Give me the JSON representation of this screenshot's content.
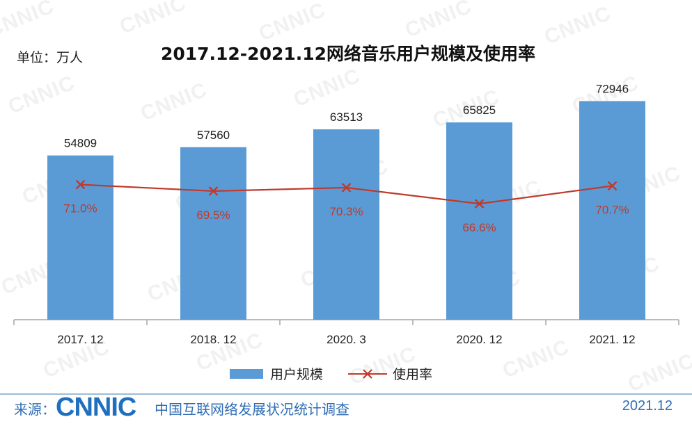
{
  "header": {
    "unit_label": "单位：万人",
    "title": "2017.12-2021.12网络音乐用户规模及使用率"
  },
  "watermark_text": "CNNIC",
  "chart_data": {
    "type": "bar",
    "title": "2017.12-2021.12网络音乐用户规模及使用率",
    "categories": [
      "2017. 12",
      "2018. 12",
      "2020. 3",
      "2020. 12",
      "2021. 12"
    ],
    "series": [
      {
        "name": "用户规模",
        "type": "bar",
        "values": [
          54809,
          57560,
          63513,
          65825,
          72946
        ],
        "labels": [
          "54809",
          "57560",
          "63513",
          "65825",
          "72946"
        ],
        "color": "#5b9bd5"
      },
      {
        "name": "使用率",
        "type": "line",
        "values": [
          71.0,
          69.5,
          70.3,
          66.6,
          70.7
        ],
        "labels": [
          "71.0%",
          "69.5%",
          "70.3%",
          "66.6%",
          "70.7%"
        ],
        "color": "#c0392b",
        "marker": "x"
      }
    ],
    "bar_ylim": [
      0,
      80000
    ],
    "rate_ylim": [
      40,
      95
    ],
    "legend_position": "bottom",
    "grid": false
  },
  "legend": {
    "bar_label": "用户规模",
    "line_label": "使用率"
  },
  "footer": {
    "source_label": "来源：",
    "logo_text": "CNNIC",
    "source_name": "中国互联网络发展状况统计调查",
    "date": "2021.12"
  }
}
